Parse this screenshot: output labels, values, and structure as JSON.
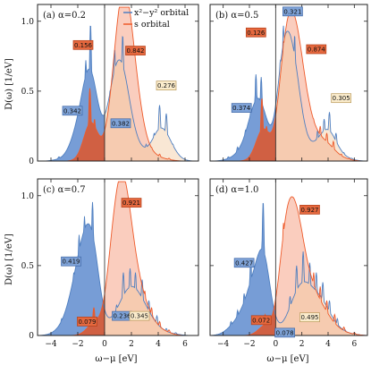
{
  "colors": {
    "dxy": "#4f7fc0",
    "dxy_fill": "#5f8ccf",
    "s": "#ee5a2a",
    "s_fill": "#f6a488",
    "s_occ_fill": "#d95a33",
    "unocc_weight_fill": "#f2c9a0",
    "frame": "#222222"
  },
  "chart_data": {
    "type": "area",
    "ylabel": "D(ω) [1/eV]",
    "xlabel": "ω−μ [eV]",
    "xlim": [
      -5,
      7
    ],
    "ylim": [
      0,
      1.12
    ],
    "x_ticks": [
      "−4",
      "−2",
      "0",
      "2",
      "4",
      "6"
    ],
    "y_ticks": [
      "0",
      "0.5",
      "1.0"
    ],
    "legend": {
      "dxy": "x²−y² orbital",
      "s": "s orbital",
      "placement": "top-right of panel (a)"
    },
    "panels": [
      {
        "label": "(a) α=0.2",
        "boxes": [
          {
            "text": "0.342",
            "x": -2.4,
            "y": 0.36,
            "color": "dxy"
          },
          {
            "text": "0.156",
            "x": -1.6,
            "y": 0.83,
            "color": "s"
          },
          {
            "text": "0.382",
            "x": 1.2,
            "y": 0.27,
            "color": "dxy"
          },
          {
            "text": "0.842",
            "x": 2.3,
            "y": 0.79,
            "color": "s"
          },
          {
            "text": "0.276",
            "x": 4.6,
            "y": 0.54,
            "color": "tan"
          }
        ],
        "dxy_peaks": [
          [
            -3.4,
            0.03
          ],
          [
            -2.6,
            0.12
          ],
          [
            -2.2,
            0.24
          ],
          [
            -1.8,
            0.42
          ],
          [
            -1.4,
            0.72
          ],
          [
            -1.05,
            0.98
          ],
          [
            -0.7,
            0.5
          ],
          [
            -0.35,
            0.22
          ],
          [
            0.05,
            0.1
          ],
          [
            0.4,
            0.5
          ],
          [
            0.75,
            0.8
          ],
          [
            1.05,
            0.55
          ],
          [
            1.35,
            0.9
          ],
          [
            1.7,
            0.5
          ],
          [
            2.1,
            0.3
          ],
          [
            2.5,
            0.13
          ],
          [
            3.1,
            0.12
          ],
          [
            3.7,
            0.2
          ],
          [
            4.1,
            0.4
          ],
          [
            4.6,
            0.34
          ],
          [
            5.1,
            0.12
          ],
          [
            5.5,
            0.03
          ]
        ],
        "s_peaks": [
          [
            -1.5,
            0.15
          ],
          [
            -1.1,
            0.52
          ],
          [
            -0.75,
            0.3
          ],
          [
            -0.3,
            0.08
          ],
          [
            0.3,
            0.3
          ],
          [
            0.7,
            0.55
          ],
          [
            0.95,
            0.87
          ],
          [
            1.2,
            0.98
          ],
          [
            1.45,
            0.95
          ],
          [
            1.7,
            1.08
          ],
          [
            1.95,
            0.82
          ],
          [
            2.25,
            0.6
          ],
          [
            2.6,
            0.48
          ],
          [
            3.0,
            0.18
          ],
          [
            3.5,
            0.1
          ],
          [
            4.1,
            0.05
          ],
          [
            4.8,
            0.02
          ]
        ]
      },
      {
        "label": "(b) α=0.5",
        "boxes": [
          {
            "text": "0.374",
            "x": -2.6,
            "y": 0.38,
            "color": "dxy"
          },
          {
            "text": "0.126",
            "x": -1.5,
            "y": 0.92,
            "color": "s"
          },
          {
            "text": "0.321",
            "x": 1.3,
            "y": 1.07,
            "color": "dxy"
          },
          {
            "text": "0.874",
            "x": 3.1,
            "y": 0.8,
            "color": "s"
          },
          {
            "text": "0.305",
            "x": 5.0,
            "y": 0.45,
            "color": "tan"
          }
        ],
        "dxy_peaks": [
          [
            -3.6,
            0.03
          ],
          [
            -2.9,
            0.1
          ],
          [
            -2.3,
            0.22
          ],
          [
            -1.9,
            0.36
          ],
          [
            -1.5,
            0.62
          ],
          [
            -1.1,
            0.6
          ],
          [
            -0.75,
            0.28
          ],
          [
            -0.4,
            0.1
          ],
          [
            0.0,
            0.05
          ],
          [
            0.35,
            0.7
          ],
          [
            0.6,
            0.95
          ],
          [
            0.9,
            0.8
          ],
          [
            1.15,
            0.65
          ],
          [
            1.45,
            0.9
          ],
          [
            1.8,
            0.45
          ],
          [
            2.2,
            0.22
          ],
          [
            2.7,
            0.12
          ],
          [
            3.2,
            0.22
          ],
          [
            3.7,
            0.3
          ],
          [
            4.1,
            0.35
          ],
          [
            4.6,
            0.2
          ],
          [
            5.2,
            0.06
          ],
          [
            5.8,
            0.02
          ]
        ],
        "s_peaks": [
          [
            -1.5,
            0.1
          ],
          [
            -1.05,
            0.45
          ],
          [
            -0.7,
            0.25
          ],
          [
            -0.3,
            0.06
          ],
          [
            0.3,
            0.45
          ],
          [
            0.6,
            0.85
          ],
          [
            0.9,
            1.0
          ],
          [
            1.2,
            1.05
          ],
          [
            1.5,
            0.9
          ],
          [
            1.8,
            0.85
          ],
          [
            2.1,
            0.6
          ],
          [
            2.5,
            0.45
          ],
          [
            2.9,
            0.3
          ],
          [
            3.4,
            0.25
          ],
          [
            3.9,
            0.2
          ],
          [
            4.4,
            0.14
          ],
          [
            5.0,
            0.05
          ],
          [
            5.6,
            0.02
          ]
        ]
      },
      {
        "label": "(c) α=0.7",
        "boxes": [
          {
            "text": "0.419",
            "x": -2.5,
            "y": 0.53,
            "color": "dxy"
          },
          {
            "text": "0.079",
            "x": -1.3,
            "y": 0.1,
            "color": "s"
          },
          {
            "text": "0.236",
            "x": 1.3,
            "y": 0.14,
            "color": "dxy"
          },
          {
            "text": "0.921",
            "x": 2.0,
            "y": 0.95,
            "color": "s"
          },
          {
            "text": "0.345",
            "x": 2.6,
            "y": 0.14,
            "color": "tan"
          }
        ],
        "dxy_peaks": [
          [
            -3.8,
            0.03
          ],
          [
            -3.2,
            0.12
          ],
          [
            -2.7,
            0.25
          ],
          [
            -2.3,
            0.45
          ],
          [
            -1.9,
            0.72
          ],
          [
            -1.5,
            0.85
          ],
          [
            -1.2,
            0.65
          ],
          [
            -0.9,
            0.95
          ],
          [
            -0.6,
            0.45
          ],
          [
            -0.3,
            0.15
          ],
          [
            0.1,
            0.04
          ],
          [
            0.5,
            0.12
          ],
          [
            0.9,
            0.22
          ],
          [
            1.4,
            0.45
          ],
          [
            1.9,
            0.48
          ],
          [
            2.3,
            0.45
          ],
          [
            2.8,
            0.4
          ],
          [
            3.3,
            0.25
          ],
          [
            3.9,
            0.14
          ],
          [
            4.6,
            0.05
          ],
          [
            5.3,
            0.02
          ]
        ],
        "s_peaks": [
          [
            -1.3,
            0.05
          ],
          [
            -0.8,
            0.2
          ],
          [
            -0.4,
            0.08
          ],
          [
            0.2,
            0.25
          ],
          [
            0.5,
            0.7
          ],
          [
            0.8,
            0.9
          ],
          [
            1.1,
            1.02
          ],
          [
            1.35,
            0.95
          ],
          [
            1.6,
            0.98
          ],
          [
            1.9,
            0.72
          ],
          [
            2.2,
            0.6
          ],
          [
            2.6,
            0.45
          ],
          [
            3.0,
            0.32
          ],
          [
            3.5,
            0.2
          ],
          [
            4.1,
            0.1
          ],
          [
            4.8,
            0.04
          ]
        ]
      },
      {
        "label": "(d) α=1.0",
        "boxes": [
          {
            "text": "0.427",
            "x": -2.4,
            "y": 0.52,
            "color": "dxy"
          },
          {
            "text": "0.072",
            "x": -1.1,
            "y": 0.11,
            "color": "s"
          },
          {
            "text": "0.078",
            "x": 0.7,
            "y": 0.02,
            "color": "dxy"
          },
          {
            "text": "0.927",
            "x": 2.6,
            "y": 0.9,
            "color": "s"
          },
          {
            "text": "0.495",
            "x": 2.6,
            "y": 0.13,
            "color": "tan"
          }
        ],
        "dxy_peaks": [
          [
            -3.9,
            0.03
          ],
          [
            -3.4,
            0.1
          ],
          [
            -2.9,
            0.18
          ],
          [
            -2.4,
            0.3
          ],
          [
            -1.9,
            0.55
          ],
          [
            -1.5,
            0.45
          ],
          [
            -1.2,
            0.35
          ],
          [
            -0.95,
            0.95
          ],
          [
            -0.65,
            0.45
          ],
          [
            -0.3,
            0.12
          ],
          [
            0.1,
            0.03
          ],
          [
            0.6,
            0.1
          ],
          [
            1.1,
            0.28
          ],
          [
            1.6,
            0.5
          ],
          [
            2.1,
            0.6
          ],
          [
            2.6,
            0.52
          ],
          [
            3.1,
            0.45
          ],
          [
            3.6,
            0.38
          ],
          [
            4.1,
            0.25
          ],
          [
            4.7,
            0.12
          ],
          [
            5.3,
            0.04
          ],
          [
            6.0,
            0.02
          ]
        ],
        "s_peaks": [
          [
            -1.2,
            0.05
          ],
          [
            -0.8,
            0.15
          ],
          [
            -0.4,
            0.06
          ],
          [
            0.3,
            0.35
          ],
          [
            0.6,
            0.8
          ],
          [
            0.9,
            0.9
          ],
          [
            1.2,
            0.95
          ],
          [
            1.5,
            0.85
          ],
          [
            1.8,
            0.8
          ],
          [
            2.1,
            0.62
          ],
          [
            2.5,
            0.5
          ],
          [
            2.9,
            0.45
          ],
          [
            3.4,
            0.35
          ],
          [
            3.9,
            0.25
          ],
          [
            4.5,
            0.15
          ],
          [
            5.2,
            0.06
          ],
          [
            6.0,
            0.02
          ]
        ]
      }
    ]
  }
}
